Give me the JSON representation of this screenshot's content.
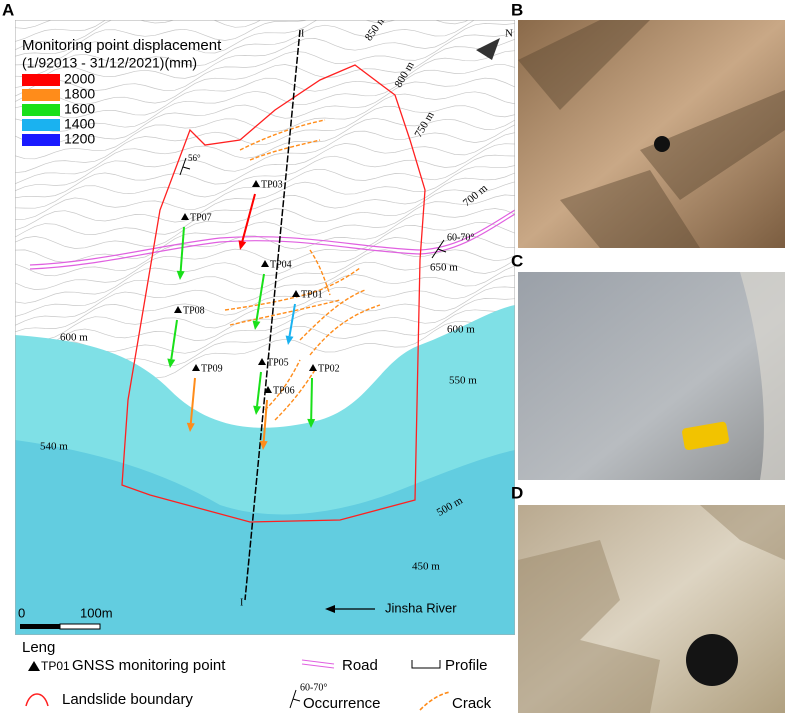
{
  "panels": {
    "a": "A",
    "b": "B",
    "c": "C",
    "d": "D"
  },
  "map": {
    "legend": {
      "title": "Monitoring point displacement",
      "period": "(1/92013 - 31/12/2021)(mm)",
      "classes": [
        {
          "value": 2000,
          "color": "#ff0000"
        },
        {
          "value": 1800,
          "color": "#ff8c1a"
        },
        {
          "value": 1600,
          "color": "#19e019"
        },
        {
          "value": 1400,
          "color": "#1ab2f0"
        },
        {
          "value": 1200,
          "color": "#1a1aff"
        }
      ]
    },
    "north": "N",
    "contours": [
      "850 m",
      "800 m",
      "750 m",
      "700 m",
      "650 m",
      "600 m",
      "600 m",
      "550 m",
      "540 m",
      "500 m",
      "450 m"
    ],
    "occurrence_labels": [
      "56°",
      "60-70°"
    ],
    "profile": [
      "I",
      "I"
    ],
    "points": [
      {
        "label": "TP03",
        "displacement": 2000
      },
      {
        "label": "TP07",
        "displacement": 1600
      },
      {
        "label": "TP04",
        "displacement": 1600
      },
      {
        "label": "TP01",
        "displacement": 1400
      },
      {
        "label": "TP08",
        "displacement": 1600
      },
      {
        "label": "TP05",
        "displacement": 1600
      },
      {
        "label": "TP02",
        "displacement": 1600
      },
      {
        "label": "TP09",
        "displacement": 1800
      },
      {
        "label": "TP06",
        "displacement": 1800
      }
    ],
    "scale": [
      "0",
      "100m"
    ],
    "river": "Jinsha River"
  },
  "key": {
    "title": "Leng",
    "point_code": "TP01",
    "point": "GNSS monitoring point",
    "road": "Road",
    "profile": "Profile",
    "boundary": "Landslide boundary",
    "occurrence_value": "60-70°",
    "occurrence": "Occurrence",
    "crack": "Crack"
  }
}
